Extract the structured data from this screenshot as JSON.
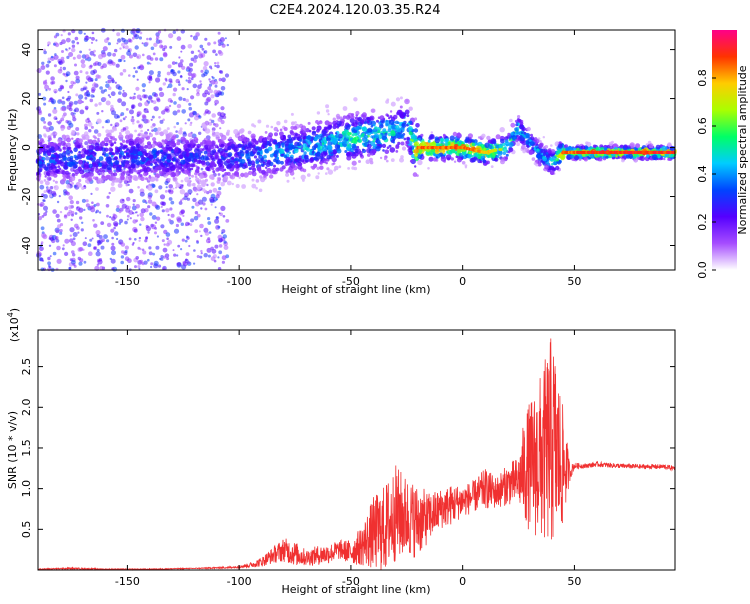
{
  "title": "C2E4.2024.120.03.35.R24",
  "colors": {
    "snr_line": "#f03030",
    "frame": "#000000",
    "background": "#ffffff"
  },
  "chart_data": [
    {
      "type": "heatmap",
      "xlabel": "Height of straight line (km)",
      "ylabel": "Frequency (Hz)",
      "xlim": [
        -190,
        95
      ],
      "ylim": [
        -50,
        48
      ],
      "xticks": [
        "-150",
        "-100",
        "-50",
        "0",
        "50"
      ],
      "xtick_values": [
        -150,
        -100,
        -50,
        0,
        50
      ],
      "yticks": [
        "-40",
        "-20",
        "0",
        "20",
        "40"
      ],
      "ytick_values": [
        -40,
        -20,
        0,
        20,
        40
      ],
      "colorbar": {
        "label": "Normalized spectral amplitude",
        "range": [
          0,
          1
        ],
        "ticks": [
          "0.0",
          "0.2",
          "0.4",
          "0.6",
          "0.8"
        ],
        "tick_values": [
          0.0,
          0.2,
          0.4,
          0.6,
          0.8
        ],
        "colormap": [
          "#ffffff",
          "#a64dff",
          "#5500ff",
          "#0044ff",
          "#00ccff",
          "#00ff66",
          "#aaff00",
          "#ffcc00",
          "#ff3300",
          "#ff0088"
        ]
      },
      "ridge": {
        "height_km": [
          -190,
          -150,
          -110,
          -90,
          -70,
          -60,
          -50,
          -40,
          -30,
          -25,
          -22,
          -20,
          -10,
          0,
          10,
          20,
          25,
          30,
          35,
          40,
          45,
          60,
          80,
          95
        ],
        "frequency_hz": [
          -5,
          -4,
          -4,
          -3,
          0,
          2,
          4,
          5,
          6,
          10,
          0,
          0,
          0,
          0,
          -2,
          0,
          8,
          2,
          -3,
          -6,
          -2,
          -2,
          -2,
          -2
        ],
        "amplitude": [
          0.35,
          0.35,
          0.3,
          0.4,
          0.45,
          0.5,
          0.55,
          0.55,
          0.5,
          0.4,
          0.7,
          0.85,
          0.85,
          0.85,
          0.8,
          0.6,
          0.5,
          0.45,
          0.45,
          0.5,
          0.85,
          0.9,
          0.9,
          0.9
        ]
      }
    },
    {
      "type": "line",
      "xlabel": "Height of straight line (km)",
      "ylabel": "SNR (10 * v/v)",
      "yscale_note": "(x10",
      "yscale_exp": "4",
      "yscale_close": ")",
      "xlim": [
        -190,
        95
      ],
      "ylim": [
        0,
        2.95
      ],
      "xticks": [
        "-150",
        "-100",
        "-50",
        "0",
        "50"
      ],
      "xtick_values": [
        -150,
        -100,
        -50,
        0,
        50
      ],
      "yticks": [
        "0.5",
        "1.0",
        "1.5",
        "2.0",
        "2.5"
      ],
      "ytick_values": [
        0.5,
        1.0,
        1.5,
        2.0,
        2.5
      ],
      "series": [
        {
          "x": [
            -190,
            -175,
            -160,
            -140,
            -120,
            -105,
            -100,
            -95,
            -90,
            -85,
            -80,
            -75,
            -70,
            -65,
            -60,
            -55,
            -50,
            -45,
            -40,
            -35,
            -30,
            -25,
            -20,
            -15,
            -10,
            -5,
            0,
            5,
            10,
            15,
            20,
            25,
            28,
            32,
            36,
            40,
            44,
            48,
            50,
            55,
            60,
            70,
            80,
            90,
            95
          ],
          "y": [
            0.01,
            0.02,
            0.01,
            0.01,
            0.02,
            0.03,
            0.04,
            0.06,
            0.1,
            0.18,
            0.25,
            0.2,
            0.15,
            0.18,
            0.2,
            0.25,
            0.22,
            0.3,
            0.45,
            0.5,
            0.7,
            0.65,
            0.6,
            0.65,
            0.75,
            0.8,
            0.85,
            0.9,
            1.0,
            0.95,
            1.05,
            1.1,
            1.25,
            1.3,
            1.4,
            1.6,
            1.3,
            1.2,
            1.28,
            1.28,
            1.3,
            1.28,
            1.27,
            1.27,
            1.25
          ],
          "noise": [
            0.005,
            0.01,
            0.005,
            0.005,
            0.005,
            0.01,
            0.015,
            0.03,
            0.06,
            0.1,
            0.15,
            0.15,
            0.1,
            0.12,
            0.12,
            0.12,
            0.15,
            0.25,
            0.45,
            0.55,
            0.6,
            0.5,
            0.45,
            0.3,
            0.25,
            0.25,
            0.2,
            0.2,
            0.25,
            0.2,
            0.25,
            0.3,
            0.7,
            0.9,
            1.1,
            1.35,
            0.9,
            0.1,
            0.04,
            0.03,
            0.03,
            0.03,
            0.03,
            0.03,
            0.03
          ]
        }
      ]
    }
  ]
}
